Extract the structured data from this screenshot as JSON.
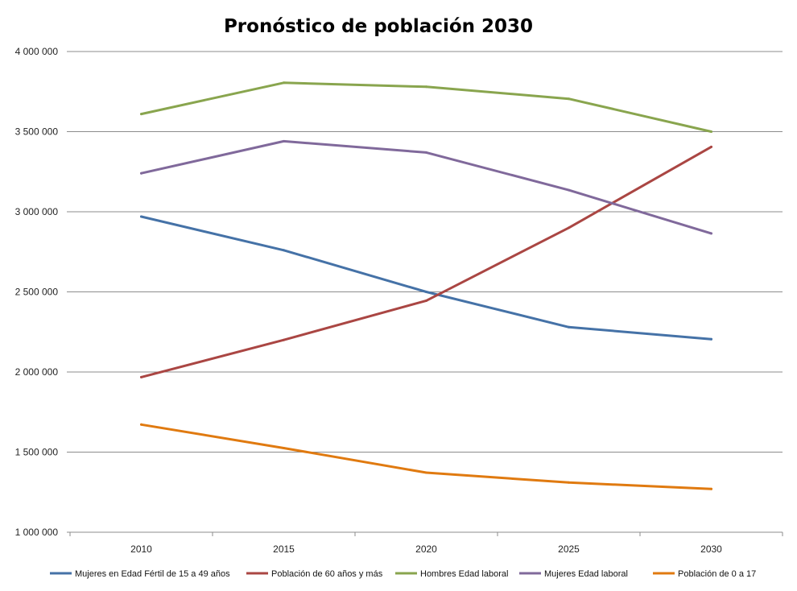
{
  "chart_data": {
    "type": "line",
    "title": "Pronóstico de población 2030",
    "xlabel": "",
    "ylabel": "",
    "categories": [
      "2010",
      "2015",
      "2020",
      "2025",
      "2030"
    ],
    "ylim": [
      1000000,
      4000000
    ],
    "yticks": [
      1000000,
      1500000,
      2000000,
      2500000,
      3000000,
      3500000,
      4000000
    ],
    "ytick_labels": [
      "1 000 000",
      "1 500 000",
      "2 000 000",
      "2 500 000",
      "3 000 000",
      "3 500 000",
      "4 000 000"
    ],
    "grid": true,
    "legend_position": "bottom",
    "series": [
      {
        "name": "Mujeres en Edad Fértil de 15 a 49 años",
        "color": "#4572a7",
        "values": [
          2970000,
          2760000,
          2500000,
          2280000,
          2205000
        ]
      },
      {
        "name": "Población de 60 años y más",
        "color": "#aa4643",
        "values": [
          1968000,
          2200000,
          2445000,
          2900000,
          3405000
        ]
      },
      {
        "name": "Hombres Edad laboral",
        "color": "#89a54e",
        "values": [
          3610000,
          3805000,
          3780000,
          3705000,
          3500000
        ]
      },
      {
        "name": "Mujeres Edad laboral",
        "color": "#80699b",
        "values": [
          3240000,
          3440000,
          3370000,
          3135000,
          2865000
        ]
      },
      {
        "name": "Población de 0 a 17",
        "color": "#e07a10",
        "values": [
          1672000,
          1525000,
          1372000,
          1310000,
          1270000
        ]
      }
    ]
  }
}
